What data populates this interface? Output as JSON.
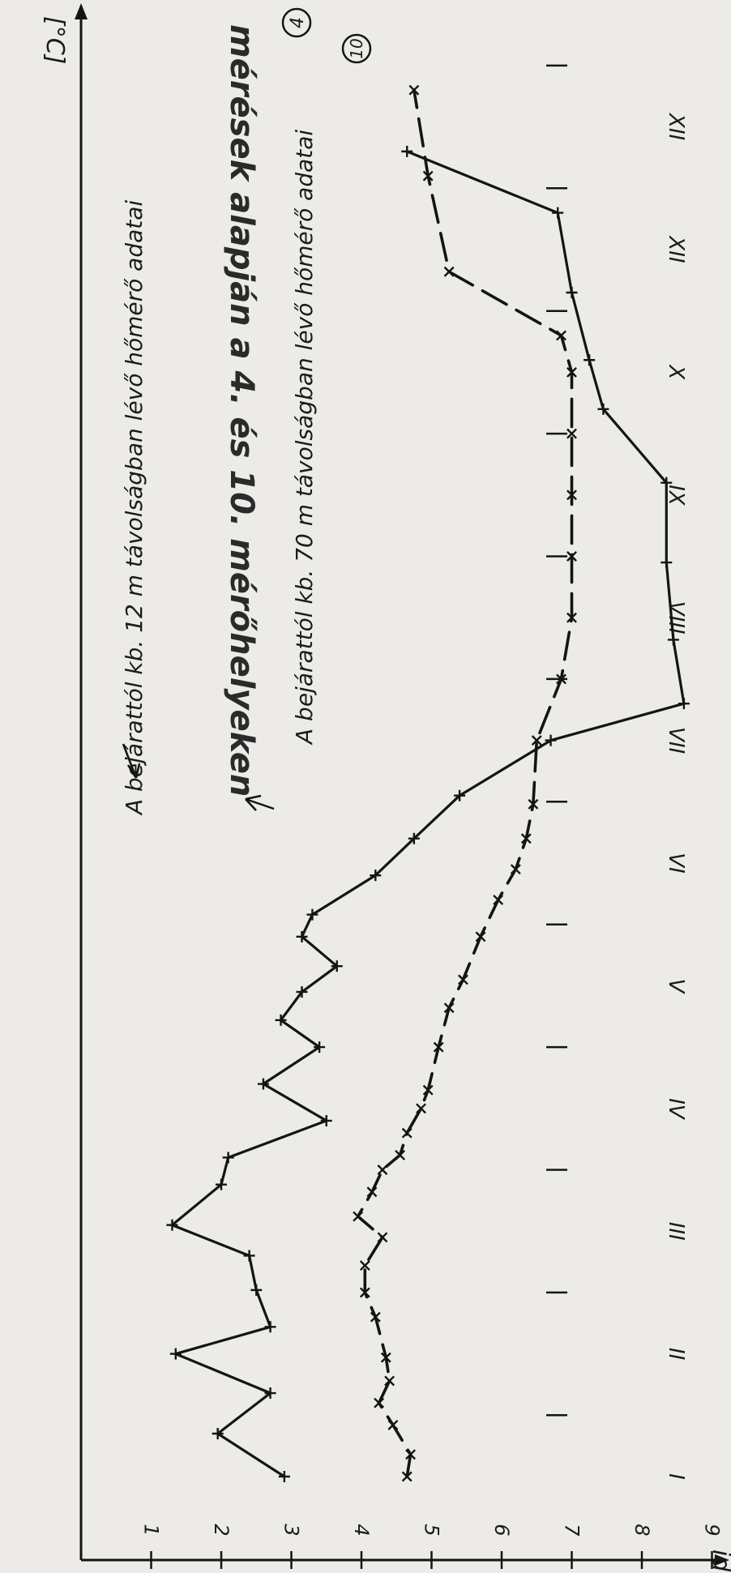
{
  "chart_data": {
    "type": "line",
    "orientation": "rotated-90-clockwise",
    "title": "mérések alapján a 4. és 10. mérőhelyeken",
    "ylabel": "[°C]",
    "xlabel": "id",
    "ylim": [
      0,
      9.5
    ],
    "y_ticks": [
      "1",
      "2",
      "3",
      "4",
      "5",
      "6",
      "7",
      "8",
      "9"
    ],
    "x_tick_labels": [
      "I",
      "II",
      "III",
      "IV",
      "V",
      "VI",
      "VII",
      "VIII",
      "IX",
      "X",
      "XII",
      "XII"
    ],
    "grid": false,
    "series": [
      {
        "name": "A bejárattól kb. 12 m távolságban lévő hőmérő adatai",
        "marker_label": "4",
        "color": "#141414",
        "marker": "x",
        "points": [
          [
            0.0,
            4.65
          ],
          [
            0.18,
            4.7
          ],
          [
            0.42,
            4.45
          ],
          [
            0.6,
            4.25
          ],
          [
            0.78,
            4.4
          ],
          [
            0.97,
            4.35
          ],
          [
            1.3,
            4.2
          ],
          [
            1.5,
            4.05
          ],
          [
            1.72,
            4.05
          ],
          [
            1.95,
            4.3
          ],
          [
            2.12,
            3.95
          ],
          [
            2.32,
            4.15
          ],
          [
            2.5,
            4.3
          ],
          [
            2.62,
            4.55
          ],
          [
            2.8,
            4.65
          ],
          [
            3.0,
            4.85
          ],
          [
            3.15,
            4.95
          ],
          [
            3.5,
            5.1
          ],
          [
            3.82,
            5.25
          ],
          [
            4.05,
            5.45
          ],
          [
            4.4,
            5.7
          ],
          [
            4.7,
            5.95
          ],
          [
            4.95,
            6.2
          ],
          [
            5.2,
            6.35
          ],
          [
            5.48,
            6.45
          ],
          [
            6.0,
            6.5
          ],
          [
            6.5,
            6.85
          ],
          [
            7.0,
            7.0
          ],
          [
            7.5,
            7.0
          ],
          [
            8.0,
            7.0
          ],
          [
            8.5,
            7.0
          ],
          [
            9.0,
            7.0
          ],
          [
            9.3,
            6.85
          ],
          [
            9.82,
            5.25
          ],
          [
            10.6,
            4.95
          ],
          [
            11.3,
            4.75
          ]
        ]
      },
      {
        "name": "A bejárattól kb. 70 m távolságban lévő hőmérő adatai",
        "marker_label": "10",
        "color": "#141414",
        "marker": "+",
        "points": [
          [
            0.0,
            2.9
          ],
          [
            0.35,
            1.95
          ],
          [
            0.68,
            2.7
          ],
          [
            1.0,
            1.35
          ],
          [
            1.22,
            2.7
          ],
          [
            1.52,
            2.5
          ],
          [
            1.8,
            2.4
          ],
          [
            2.05,
            1.3
          ],
          [
            2.38,
            2.0
          ],
          [
            2.6,
            2.1
          ],
          [
            2.9,
            3.5
          ],
          [
            3.2,
            2.6
          ],
          [
            3.5,
            3.4
          ],
          [
            3.72,
            2.85
          ],
          [
            3.95,
            3.15
          ],
          [
            4.16,
            3.65
          ],
          [
            4.4,
            3.15
          ],
          [
            4.58,
            3.3
          ],
          [
            4.9,
            4.2
          ],
          [
            5.2,
            4.75
          ],
          [
            5.55,
            5.4
          ],
          [
            6.0,
            6.7
          ],
          [
            6.3,
            8.6
          ],
          [
            6.82,
            8.45
          ],
          [
            7.45,
            8.35
          ],
          [
            8.1,
            8.35
          ],
          [
            8.7,
            7.45
          ],
          [
            9.1,
            7.25
          ],
          [
            9.65,
            7.0
          ],
          [
            10.3,
            6.8
          ],
          [
            10.8,
            4.65
          ]
        ]
      }
    ]
  }
}
